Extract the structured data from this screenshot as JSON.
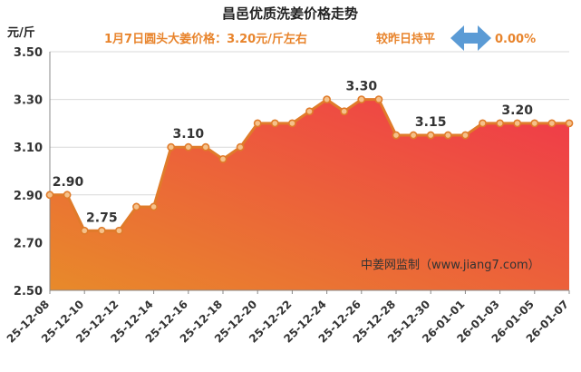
{
  "header": {
    "title": "昌邑优质洗姜价格走势",
    "subtitle": "1月7日圆头大姜价格：3.20元/斤左右",
    "comparison_label": "较昨日持平",
    "change_value": "0.00%",
    "change_icon": "left-right-arrow-icon",
    "accent_color": "#E8842C",
    "arrow_color": "#5B9BD5"
  },
  "watermark": "中姜网监制（www.jiang7.com）",
  "chart_data": {
    "type": "area",
    "title": "昌邑优质洗姜价格走势",
    "ylabel": "元/斤",
    "xlabel": "",
    "ylim": [
      2.5,
      3.5
    ],
    "yticks": [
      2.5,
      2.7,
      2.9,
      3.1,
      3.3,
      3.5
    ],
    "ytick_labels": [
      "2.50",
      "2.70",
      "2.90",
      "3.10",
      "3.30",
      "3.50"
    ],
    "grid": true,
    "x": [
      "25-12-08",
      "25-12-09",
      "25-12-10",
      "25-12-11",
      "25-12-12",
      "25-12-13",
      "25-12-14",
      "25-12-15",
      "25-12-16",
      "25-12-17",
      "25-12-18",
      "25-12-19",
      "25-12-20",
      "25-12-21",
      "25-12-22",
      "25-12-23",
      "25-12-24",
      "25-12-25",
      "25-12-26",
      "25-12-27",
      "25-12-28",
      "25-12-29",
      "25-12-30",
      "25-12-31",
      "26-01-01",
      "26-01-02",
      "26-01-03",
      "26-01-04",
      "26-01-05",
      "26-01-06",
      "26-01-07"
    ],
    "xtick_labels": [
      "25-12-08",
      "25-12-10",
      "25-12-12",
      "25-12-14",
      "25-12-16",
      "25-12-18",
      "25-12-20",
      "25-12-22",
      "25-12-24",
      "25-12-26",
      "25-12-28",
      "25-12-30",
      "26-01-01",
      "26-01-03",
      "26-01-05",
      "26-01-07"
    ],
    "values": [
      2.9,
      2.9,
      2.75,
      2.75,
      2.75,
      2.85,
      2.85,
      3.1,
      3.1,
      3.1,
      3.05,
      3.1,
      3.2,
      3.2,
      3.2,
      3.25,
      3.3,
      3.25,
      3.3,
      3.3,
      3.15,
      3.15,
      3.15,
      3.15,
      3.15,
      3.2,
      3.2,
      3.2,
      3.2,
      3.2,
      3.2
    ],
    "data_labels": [
      {
        "index": 0,
        "text": "2.90"
      },
      {
        "index": 3,
        "text": "2.75"
      },
      {
        "index": 8,
        "text": "3.10"
      },
      {
        "index": 18,
        "text": "3.30"
      },
      {
        "index": 22,
        "text": "3.15"
      },
      {
        "index": 27,
        "text": "3.20"
      }
    ],
    "colors": {
      "line": "#E07B2A",
      "marker_fill": "#F5C18A",
      "area_top": "#F0384A",
      "area_bottom": "#E88A2A",
      "grid": "#D9D9D9"
    }
  }
}
